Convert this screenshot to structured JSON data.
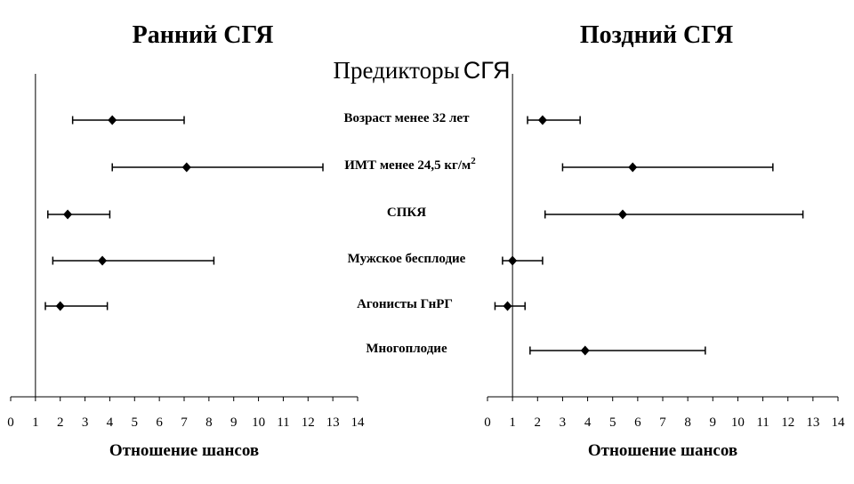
{
  "main_title": "Предикторы",
  "main_title_suffix": "СГЯ",
  "predictors": [
    {
      "label": "Возраст менее 32 лет"
    },
    {
      "label": "ИМТ менее 24,5 кг/м",
      "sup": "2"
    },
    {
      "label": "СПКЯ"
    },
    {
      "label": "Мужское бесплодие"
    },
    {
      "label": "Агонисты ГнРГ"
    },
    {
      "label": "Многоплодие"
    }
  ],
  "chart_data": [
    {
      "type": "scatter",
      "subtype": "forest",
      "title": "Ранний СГЯ",
      "xlabel": "Отношение шансов",
      "xlim": [
        0,
        14
      ],
      "xticks": [
        0,
        1,
        2,
        3,
        4,
        5,
        6,
        7,
        8,
        9,
        10,
        11,
        12,
        13,
        14
      ],
      "reference_line": 1,
      "points": [
        {
          "predictor": "Возраст менее 32 лет",
          "or": 4.1,
          "ci": [
            2.5,
            7.0
          ]
        },
        {
          "predictor": "ИМТ менее 24,5 кг/м2",
          "or": 7.1,
          "ci": [
            4.1,
            12.6
          ]
        },
        {
          "predictor": "СПКЯ",
          "or": 2.3,
          "ci": [
            1.5,
            4.0
          ]
        },
        {
          "predictor": "Мужское бесплодие",
          "or": 3.7,
          "ci": [
            1.7,
            8.2
          ]
        },
        {
          "predictor": "Агонисты ГнРГ",
          "or": 2.0,
          "ci": [
            1.4,
            3.9
          ]
        }
      ]
    },
    {
      "type": "scatter",
      "subtype": "forest",
      "title": "Поздний СГЯ",
      "xlabel": "Отношение шансов",
      "xlim": [
        0,
        14
      ],
      "xticks": [
        0,
        1,
        2,
        3,
        4,
        5,
        6,
        7,
        8,
        9,
        10,
        11,
        12,
        13,
        14
      ],
      "reference_line": 1,
      "points": [
        {
          "predictor": "Возраст менее 32 лет",
          "or": 2.2,
          "ci": [
            1.6,
            3.7
          ]
        },
        {
          "predictor": "ИМТ менее 24,5 кг/м2",
          "or": 5.8,
          "ci": [
            3.0,
            11.4
          ]
        },
        {
          "predictor": "СПКЯ",
          "or": 5.4,
          "ci": [
            2.3,
            12.6
          ]
        },
        {
          "predictor": "Мужское бесплодие",
          "or": 1.0,
          "ci": [
            0.6,
            2.2
          ]
        },
        {
          "predictor": "Агонисты ГнРГ",
          "or": 0.8,
          "ci": [
            0.3,
            1.5
          ]
        },
        {
          "predictor": "Многоплодие",
          "or": 3.9,
          "ci": [
            1.7,
            8.7
          ]
        }
      ]
    }
  ]
}
